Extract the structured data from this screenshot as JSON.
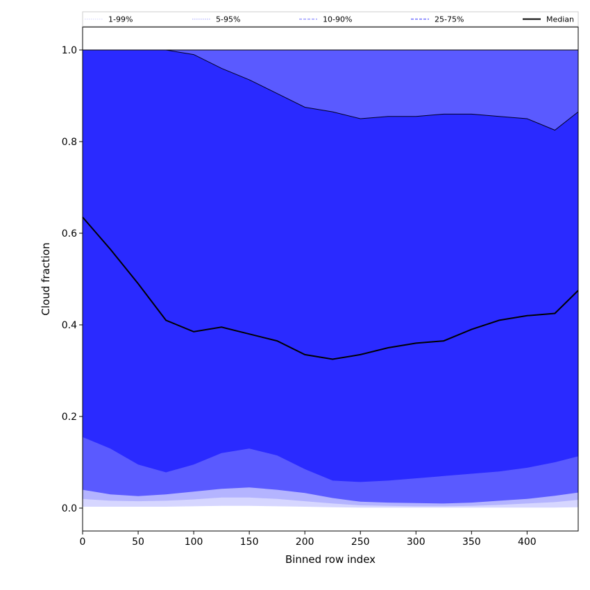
{
  "chart_data": {
    "type": "area",
    "title": "",
    "xlabel": "Binned row index",
    "ylabel": "Cloud fraction",
    "xlim": [
      0,
      446
    ],
    "ylim": [
      -0.05,
      1.05
    ],
    "xticks": [
      0,
      50,
      100,
      150,
      200,
      250,
      300,
      350,
      400
    ],
    "yticks": [
      0.0,
      0.2,
      0.4,
      0.6,
      0.8,
      1.0
    ],
    "xtick_labels": [
      "0",
      "50",
      "100",
      "150",
      "200",
      "250",
      "300",
      "350",
      "400"
    ],
    "ytick_labels": [
      "0.0",
      "0.2",
      "0.4",
      "0.6",
      "0.8",
      "1.0"
    ],
    "grid": false,
    "legend_position": "top",
    "legend": [
      {
        "label": "1-99%",
        "color": "#dcdcff",
        "style": "dotted"
      },
      {
        "label": "5-95%",
        "color": "#b4b4ff",
        "style": "dotted"
      },
      {
        "label": "10-90%",
        "color": "#8c8cff",
        "style": "dashed"
      },
      {
        "label": "25-75%",
        "color": "#5a5aff",
        "style": "dashed"
      },
      {
        "label": "Median",
        "color": "#000000",
        "style": "solid"
      }
    ],
    "colors": {
      "band_1_99": "#d6d6ff",
      "band_5_95": "#b4b4ff",
      "band_10_90": "#5a5aff",
      "band_25_75": "#2a2aff",
      "median": "#000000"
    },
    "x": [
      0,
      25,
      50,
      75,
      100,
      125,
      150,
      175,
      200,
      225,
      250,
      275,
      300,
      325,
      350,
      375,
      400,
      425,
      446
    ],
    "series": [
      {
        "name": "1-99%",
        "lower": [
          0.003,
          0.003,
          0.003,
          0.003,
          0.004,
          0.005,
          0.005,
          0.004,
          0.003,
          0.002,
          0.001,
          0.001,
          0.001,
          0.001,
          0.001,
          0.001,
          0.001,
          0.001,
          0.002
        ],
        "upper": [
          1.0,
          1.0,
          1.0,
          1.0,
          1.0,
          1.0,
          1.0,
          1.0,
          1.0,
          1.0,
          1.0,
          1.0,
          1.0,
          1.0,
          1.0,
          1.0,
          1.0,
          1.0,
          1.0
        ]
      },
      {
        "name": "5-95%",
        "lower": [
          0.02,
          0.016,
          0.015,
          0.016,
          0.019,
          0.023,
          0.023,
          0.02,
          0.015,
          0.01,
          0.006,
          0.005,
          0.004,
          0.004,
          0.005,
          0.007,
          0.01,
          0.013,
          0.018
        ],
        "upper": [
          1.0,
          1.0,
          1.0,
          1.0,
          1.0,
          1.0,
          1.0,
          1.0,
          1.0,
          1.0,
          1.0,
          1.0,
          1.0,
          1.0,
          1.0,
          1.0,
          1.0,
          1.0,
          1.0
        ]
      },
      {
        "name": "10-90%",
        "lower": [
          0.04,
          0.03,
          0.026,
          0.03,
          0.036,
          0.042,
          0.045,
          0.04,
          0.033,
          0.022,
          0.014,
          0.012,
          0.011,
          0.01,
          0.012,
          0.016,
          0.02,
          0.027,
          0.034
        ],
        "upper": [
          1.0,
          1.0,
          1.0,
          1.0,
          1.0,
          1.0,
          1.0,
          1.0,
          1.0,
          1.0,
          1.0,
          1.0,
          1.0,
          1.0,
          1.0,
          1.0,
          1.0,
          1.0,
          1.0
        ]
      },
      {
        "name": "25-75%",
        "lower": [
          0.155,
          0.13,
          0.095,
          0.078,
          0.095,
          0.12,
          0.13,
          0.115,
          0.085,
          0.06,
          0.057,
          0.06,
          0.065,
          0.07,
          0.075,
          0.08,
          0.088,
          0.1,
          0.113
        ],
        "upper": [
          1.0,
          1.0,
          1.0,
          1.0,
          0.99,
          0.96,
          0.935,
          0.905,
          0.875,
          0.865,
          0.85,
          0.855,
          0.855,
          0.86,
          0.86,
          0.855,
          0.85,
          0.825,
          0.865
        ]
      },
      {
        "name": "Median",
        "values": [
          0.635,
          0.565,
          0.49,
          0.41,
          0.385,
          0.395,
          0.38,
          0.365,
          0.335,
          0.325,
          0.335,
          0.35,
          0.36,
          0.365,
          0.39,
          0.41,
          0.42,
          0.425,
          0.475
        ]
      }
    ]
  }
}
